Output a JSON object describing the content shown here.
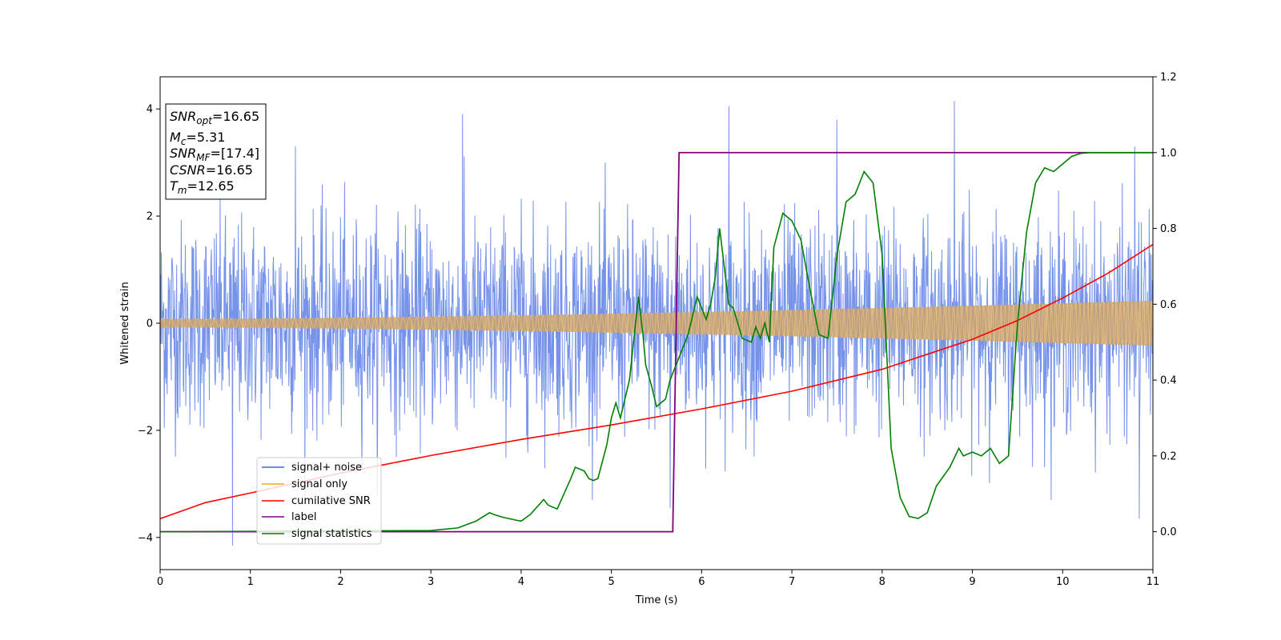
{
  "chart_data": {
    "type": "line",
    "xlabel": "Time (s)",
    "ylabel": "Whitened strain",
    "xlim": [
      0,
      11
    ],
    "ylim": [
      -4.6,
      4.6
    ],
    "y2lim": [
      -0.1,
      1.2
    ],
    "x_ticks": [
      0,
      1,
      2,
      3,
      4,
      5,
      6,
      7,
      8,
      9,
      10,
      11
    ],
    "y_ticks": [
      -4,
      -2,
      0,
      2,
      4
    ],
    "y2_ticks": [
      0.0,
      0.2,
      0.4,
      0.6,
      0.8,
      1.0,
      1.2
    ],
    "legend_position": "lower-left",
    "info_box": {
      "snr_opt": {
        "main": "SNR",
        "sub": "opt",
        "value": "=16.65"
      },
      "mc": {
        "main": "M",
        "sub": "c",
        "value": "=5.31"
      },
      "snr_mf": {
        "main": "SNR",
        "sub": "MF",
        "value": "=[17.4]"
      },
      "csnr": {
        "main": "CSNR",
        "value": "=16.65"
      },
      "tm": {
        "main": "T",
        "sub": "m",
        "value": "=12.65"
      }
    },
    "series": [
      {
        "name": "signal+ noise",
        "color": "#4169e1",
        "axis": "left",
        "kind": "noise",
        "std": 0.95,
        "peaks": [
          [
            0.8,
            -4.15
          ],
          [
            1.5,
            3.3
          ],
          [
            3.35,
            3.9
          ],
          [
            6.3,
            4.05
          ],
          [
            7.5,
            3.8
          ],
          [
            8.8,
            4.15
          ],
          [
            10.8,
            3.3
          ],
          [
            5.65,
            -3.45
          ],
          [
            10.85,
            -3.65
          ]
        ]
      },
      {
        "name": "signal only",
        "color": "#f5a623",
        "axis": "left",
        "kind": "chirp",
        "amplitude_start": 0.08,
        "amplitude_end": 0.42
      },
      {
        "name": "cumilative SNR",
        "color": "#ff0000",
        "axis": "left",
        "x": [
          0,
          0.5,
          1,
          2,
          3,
          4,
          5,
          6,
          7,
          8,
          9,
          9.5,
          10,
          10.5,
          11
        ],
        "y": [
          -3.65,
          -3.35,
          -3.17,
          -2.8,
          -2.47,
          -2.17,
          -1.9,
          -1.6,
          -1.27,
          -0.86,
          -0.3,
          0.05,
          0.47,
          0.93,
          1.47
        ]
      },
      {
        "name": "label",
        "color": "#800080",
        "axis": "right",
        "x": [
          0,
          5.68,
          5.75,
          11
        ],
        "y": [
          0,
          0,
          1,
          1
        ]
      },
      {
        "name": "signal statistics",
        "color": "#008000",
        "axis": "right",
        "x": [
          0,
          1,
          2,
          3,
          3.3,
          3.5,
          3.65,
          3.7,
          3.8,
          3.95,
          4.0,
          4.1,
          4.25,
          4.3,
          4.4,
          4.55,
          4.6,
          4.7,
          4.75,
          4.8,
          4.85,
          4.95,
          5.0,
          5.05,
          5.1,
          5.2,
          5.3,
          5.35,
          5.38,
          5.45,
          5.5,
          5.6,
          5.65,
          5.7,
          5.75,
          5.85,
          5.95,
          6.05,
          6.1,
          6.15,
          6.2,
          6.3,
          6.35,
          6.45,
          6.55,
          6.6,
          6.65,
          6.7,
          6.75,
          6.8,
          6.9,
          7.0,
          7.1,
          7.2,
          7.3,
          7.4,
          7.5,
          7.6,
          7.7,
          7.8,
          7.9,
          8.0,
          8.1,
          8.2,
          8.3,
          8.4,
          8.5,
          8.6,
          8.75,
          8.85,
          8.9,
          9.0,
          9.1,
          9.2,
          9.3,
          9.4,
          9.5,
          9.6,
          9.7,
          9.8,
          9.9,
          10.0,
          10.1,
          10.2,
          10.3,
          10.5,
          11
        ],
        "y": [
          0.0,
          0.001,
          0.002,
          0.003,
          0.01,
          0.028,
          0.05,
          0.045,
          0.038,
          0.03,
          0.028,
          0.045,
          0.085,
          0.07,
          0.06,
          0.14,
          0.17,
          0.16,
          0.14,
          0.135,
          0.14,
          0.23,
          0.3,
          0.34,
          0.3,
          0.4,
          0.62,
          0.52,
          0.44,
          0.38,
          0.33,
          0.35,
          0.4,
          0.43,
          0.46,
          0.52,
          0.62,
          0.56,
          0.6,
          0.67,
          0.8,
          0.6,
          0.59,
          0.51,
          0.5,
          0.54,
          0.51,
          0.55,
          0.5,
          0.75,
          0.84,
          0.82,
          0.77,
          0.64,
          0.52,
          0.51,
          0.73,
          0.87,
          0.89,
          0.95,
          0.92,
          0.73,
          0.22,
          0.09,
          0.04,
          0.035,
          0.05,
          0.12,
          0.17,
          0.22,
          0.2,
          0.21,
          0.2,
          0.22,
          0.18,
          0.2,
          0.55,
          0.79,
          0.92,
          0.96,
          0.95,
          0.97,
          0.99,
          0.998,
          1.0,
          1.0,
          1.0
        ]
      }
    ]
  }
}
